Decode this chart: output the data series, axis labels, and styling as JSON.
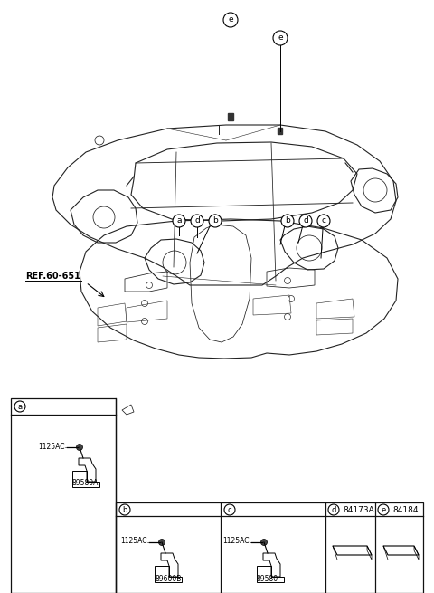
{
  "bg_color": "#ffffff",
  "fig_width": 4.8,
  "fig_height": 6.55,
  "car_edge": "#222222",
  "box_edge": "#111111",
  "parts": {
    "box_a_label": "a",
    "box_a_part1": "1125AC",
    "box_a_part2": "89580A",
    "box_b_label": "b",
    "box_b_part1": "1125AC",
    "box_b_part2": "89600B",
    "box_c_label": "c",
    "box_c_part1": "1125AC",
    "box_c_part2": "89580",
    "box_d_label": "d",
    "box_d_part_num": "84173A",
    "box_e_label": "e",
    "box_e_part_num": "84184",
    "ref_label": "REF.60-651"
  }
}
